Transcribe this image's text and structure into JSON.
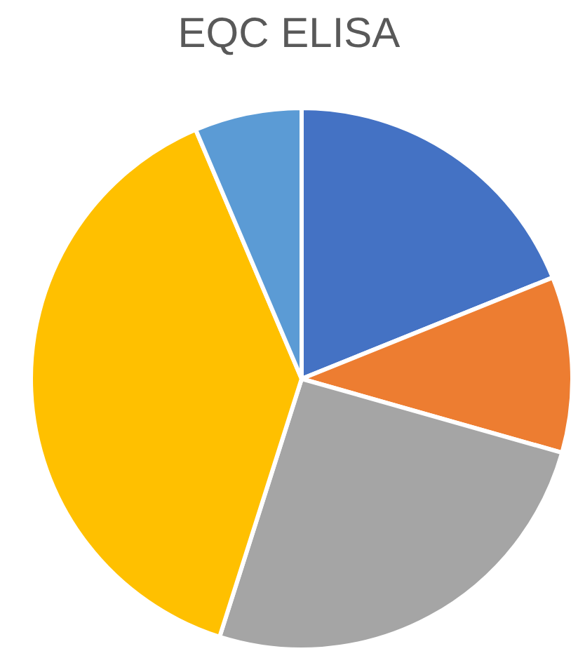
{
  "chart_data": {
    "type": "pie",
    "title": "EQC ELISA",
    "categories": [
      null,
      null,
      null,
      null,
      null
    ],
    "values": [
      18.9,
      10.5,
      25.5,
      38.7,
      6.4
    ],
    "colors": [
      "#4472c4",
      "#ed7d31",
      "#a5a5a5",
      "#ffc000",
      "#5b9bd5"
    ]
  }
}
